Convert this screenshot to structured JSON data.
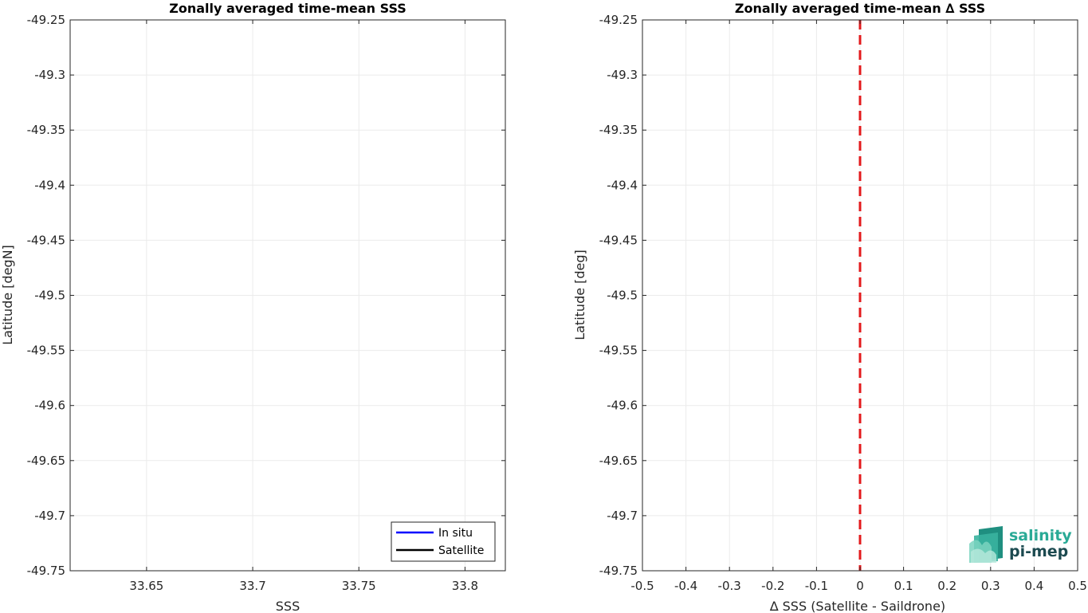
{
  "chart_data": [
    {
      "type": "line",
      "title": "Zonally averaged time-mean SSS",
      "xlabel": "SSS",
      "ylabel": "Latitude [degN]",
      "xlim": [
        33.614,
        33.819
      ],
      "ylim": [
        -49.75,
        -49.25
      ],
      "xticks": [
        33.65,
        33.7,
        33.75,
        33.8
      ],
      "xtick_labels": [
        "33.65",
        "33.7",
        "33.75",
        "33.8"
      ],
      "yticks": [
        -49.25,
        -49.3,
        -49.35,
        -49.4,
        -49.45,
        -49.5,
        -49.55,
        -49.6,
        -49.65,
        -49.7,
        -49.75
      ],
      "ytick_labels": [
        "-49.25",
        "-49.3",
        "-49.35",
        "-49.4",
        "-49.45",
        "-49.5",
        "-49.55",
        "-49.6",
        "-49.65",
        "-49.7",
        "-49.75"
      ],
      "grid": true,
      "legend_position": "bottom-right",
      "series": [
        {
          "name": "In situ",
          "color": "#0000ff",
          "x": [],
          "y": []
        },
        {
          "name": "Satellite",
          "color": "#000000",
          "x": [],
          "y": []
        }
      ]
    },
    {
      "type": "line",
      "title": "Zonally averaged time-mean ∆ SSS",
      "xlabel": "∆ SSS (Satellite - Saildrone)",
      "ylabel": "Latitude [deg]",
      "xlim": [
        -0.5,
        0.5
      ],
      "ylim": [
        -49.75,
        -49.25
      ],
      "xticks": [
        -0.5,
        -0.4,
        -0.3,
        -0.2,
        -0.1,
        0,
        0.1,
        0.2,
        0.3,
        0.4,
        0.5
      ],
      "xtick_labels": [
        "-0.5",
        "-0.4",
        "-0.3",
        "-0.2",
        "-0.1",
        "0",
        "0.1",
        "0.2",
        "0.3",
        "0.4",
        "0.5"
      ],
      "yticks": [
        -49.25,
        -49.3,
        -49.35,
        -49.4,
        -49.45,
        -49.5,
        -49.55,
        -49.6,
        -49.65,
        -49.7,
        -49.75
      ],
      "ytick_labels": [
        "-49.25",
        "-49.3",
        "-49.35",
        "-49.4",
        "-49.45",
        "-49.5",
        "-49.55",
        "-49.6",
        "-49.65",
        "-49.7",
        "-49.75"
      ],
      "grid": true,
      "reference_line": {
        "x": 0,
        "style": "dashed",
        "color": "#e31a1c"
      }
    }
  ],
  "logo": {
    "line1": "salinity",
    "line2": "pi-mep",
    "color1": "#2aaa96",
    "color2": "#1c4a50"
  },
  "colors": {
    "grid": "#ebebeb",
    "axes": "#262626"
  }
}
